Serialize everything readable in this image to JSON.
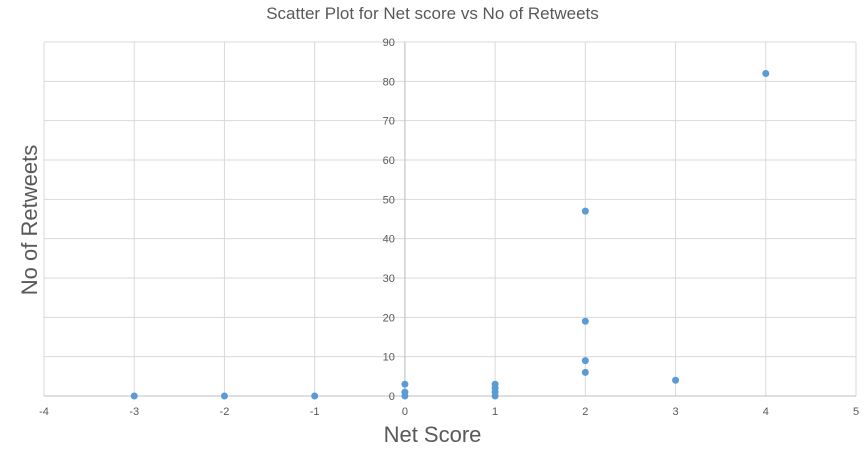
{
  "chart_data": {
    "type": "scatter",
    "title": "Scatter Plot for Net score vs No of Retweets",
    "xlabel": "Net Score",
    "ylabel": "No of Retweets",
    "xlim": [
      -4,
      5
    ],
    "ylim": [
      0,
      90
    ],
    "x_ticks": [
      -4,
      -3,
      -2,
      -1,
      0,
      1,
      2,
      3,
      4,
      5
    ],
    "y_ticks": [
      0,
      10,
      20,
      30,
      40,
      50,
      60,
      70,
      80,
      90
    ],
    "grid": true,
    "legend": "none",
    "color": "#5b9bd5",
    "points": [
      {
        "x": -3,
        "y": 0
      },
      {
        "x": -2,
        "y": 0
      },
      {
        "x": -1,
        "y": 0
      },
      {
        "x": 0,
        "y": 0
      },
      {
        "x": 0,
        "y": 1
      },
      {
        "x": 0,
        "y": 3
      },
      {
        "x": 1,
        "y": 0
      },
      {
        "x": 1,
        "y": 1
      },
      {
        "x": 1,
        "y": 2
      },
      {
        "x": 1,
        "y": 3
      },
      {
        "x": 2,
        "y": 6
      },
      {
        "x": 2,
        "y": 9
      },
      {
        "x": 2,
        "y": 19
      },
      {
        "x": 2,
        "y": 47
      },
      {
        "x": 3,
        "y": 4
      },
      {
        "x": 4,
        "y": 82
      }
    ]
  }
}
